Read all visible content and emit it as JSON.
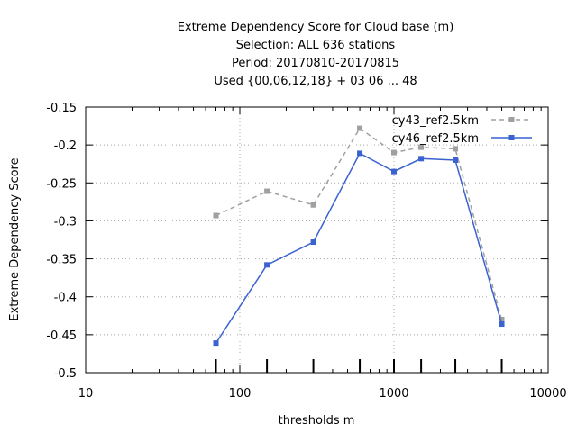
{
  "chart_data": {
    "type": "line",
    "title_lines": [
      "Extreme Dependency Score  for Cloud base (m)",
      "Selection: ALL    636 stations",
      "Period: 20170810-20170815",
      "Used {00,06,12,18} + 03 06 ... 48"
    ],
    "xlabel": "thresholds m",
    "ylabel": "Extreme Dependency Score",
    "x_scale": "log",
    "xlim": [
      10,
      10000
    ],
    "ylim": [
      -0.5,
      -0.15
    ],
    "x_ticks": [
      10,
      100,
      1000,
      10000
    ],
    "x_tick_labels": [
      "10",
      "100",
      "1000",
      "10000"
    ],
    "y_ticks": [
      -0.5,
      -0.45,
      -0.4,
      -0.35,
      -0.3,
      -0.25,
      -0.2,
      -0.15
    ],
    "y_tick_labels": [
      "-0.5",
      "-0.45",
      "-0.4",
      "-0.35",
      "-0.3",
      "-0.25",
      "-0.2",
      "-0.15"
    ],
    "grid": true,
    "legend_position": "top-right",
    "threshold_markers": [
      70,
      150,
      300,
      600,
      1000,
      1500,
      2500,
      5000
    ],
    "series": [
      {
        "name": "cy43_ref2.5km",
        "color": "#a0a0a0",
        "dashed": true,
        "x": [
          70,
          150,
          300,
          600,
          1000,
          1500,
          2500,
          5000
        ],
        "y": [
          -0.293,
          -0.261,
          -0.279,
          -0.178,
          -0.21,
          -0.203,
          -0.205,
          -0.43
        ]
      },
      {
        "name": "cy46_ref2.5km",
        "color": "#3a62d0",
        "dashed": false,
        "x": [
          70,
          150,
          300,
          600,
          1000,
          1500,
          2500,
          5000
        ],
        "y": [
          -0.461,
          -0.358,
          -0.328,
          -0.211,
          -0.235,
          -0.218,
          -0.22,
          -0.436
        ]
      }
    ]
  }
}
